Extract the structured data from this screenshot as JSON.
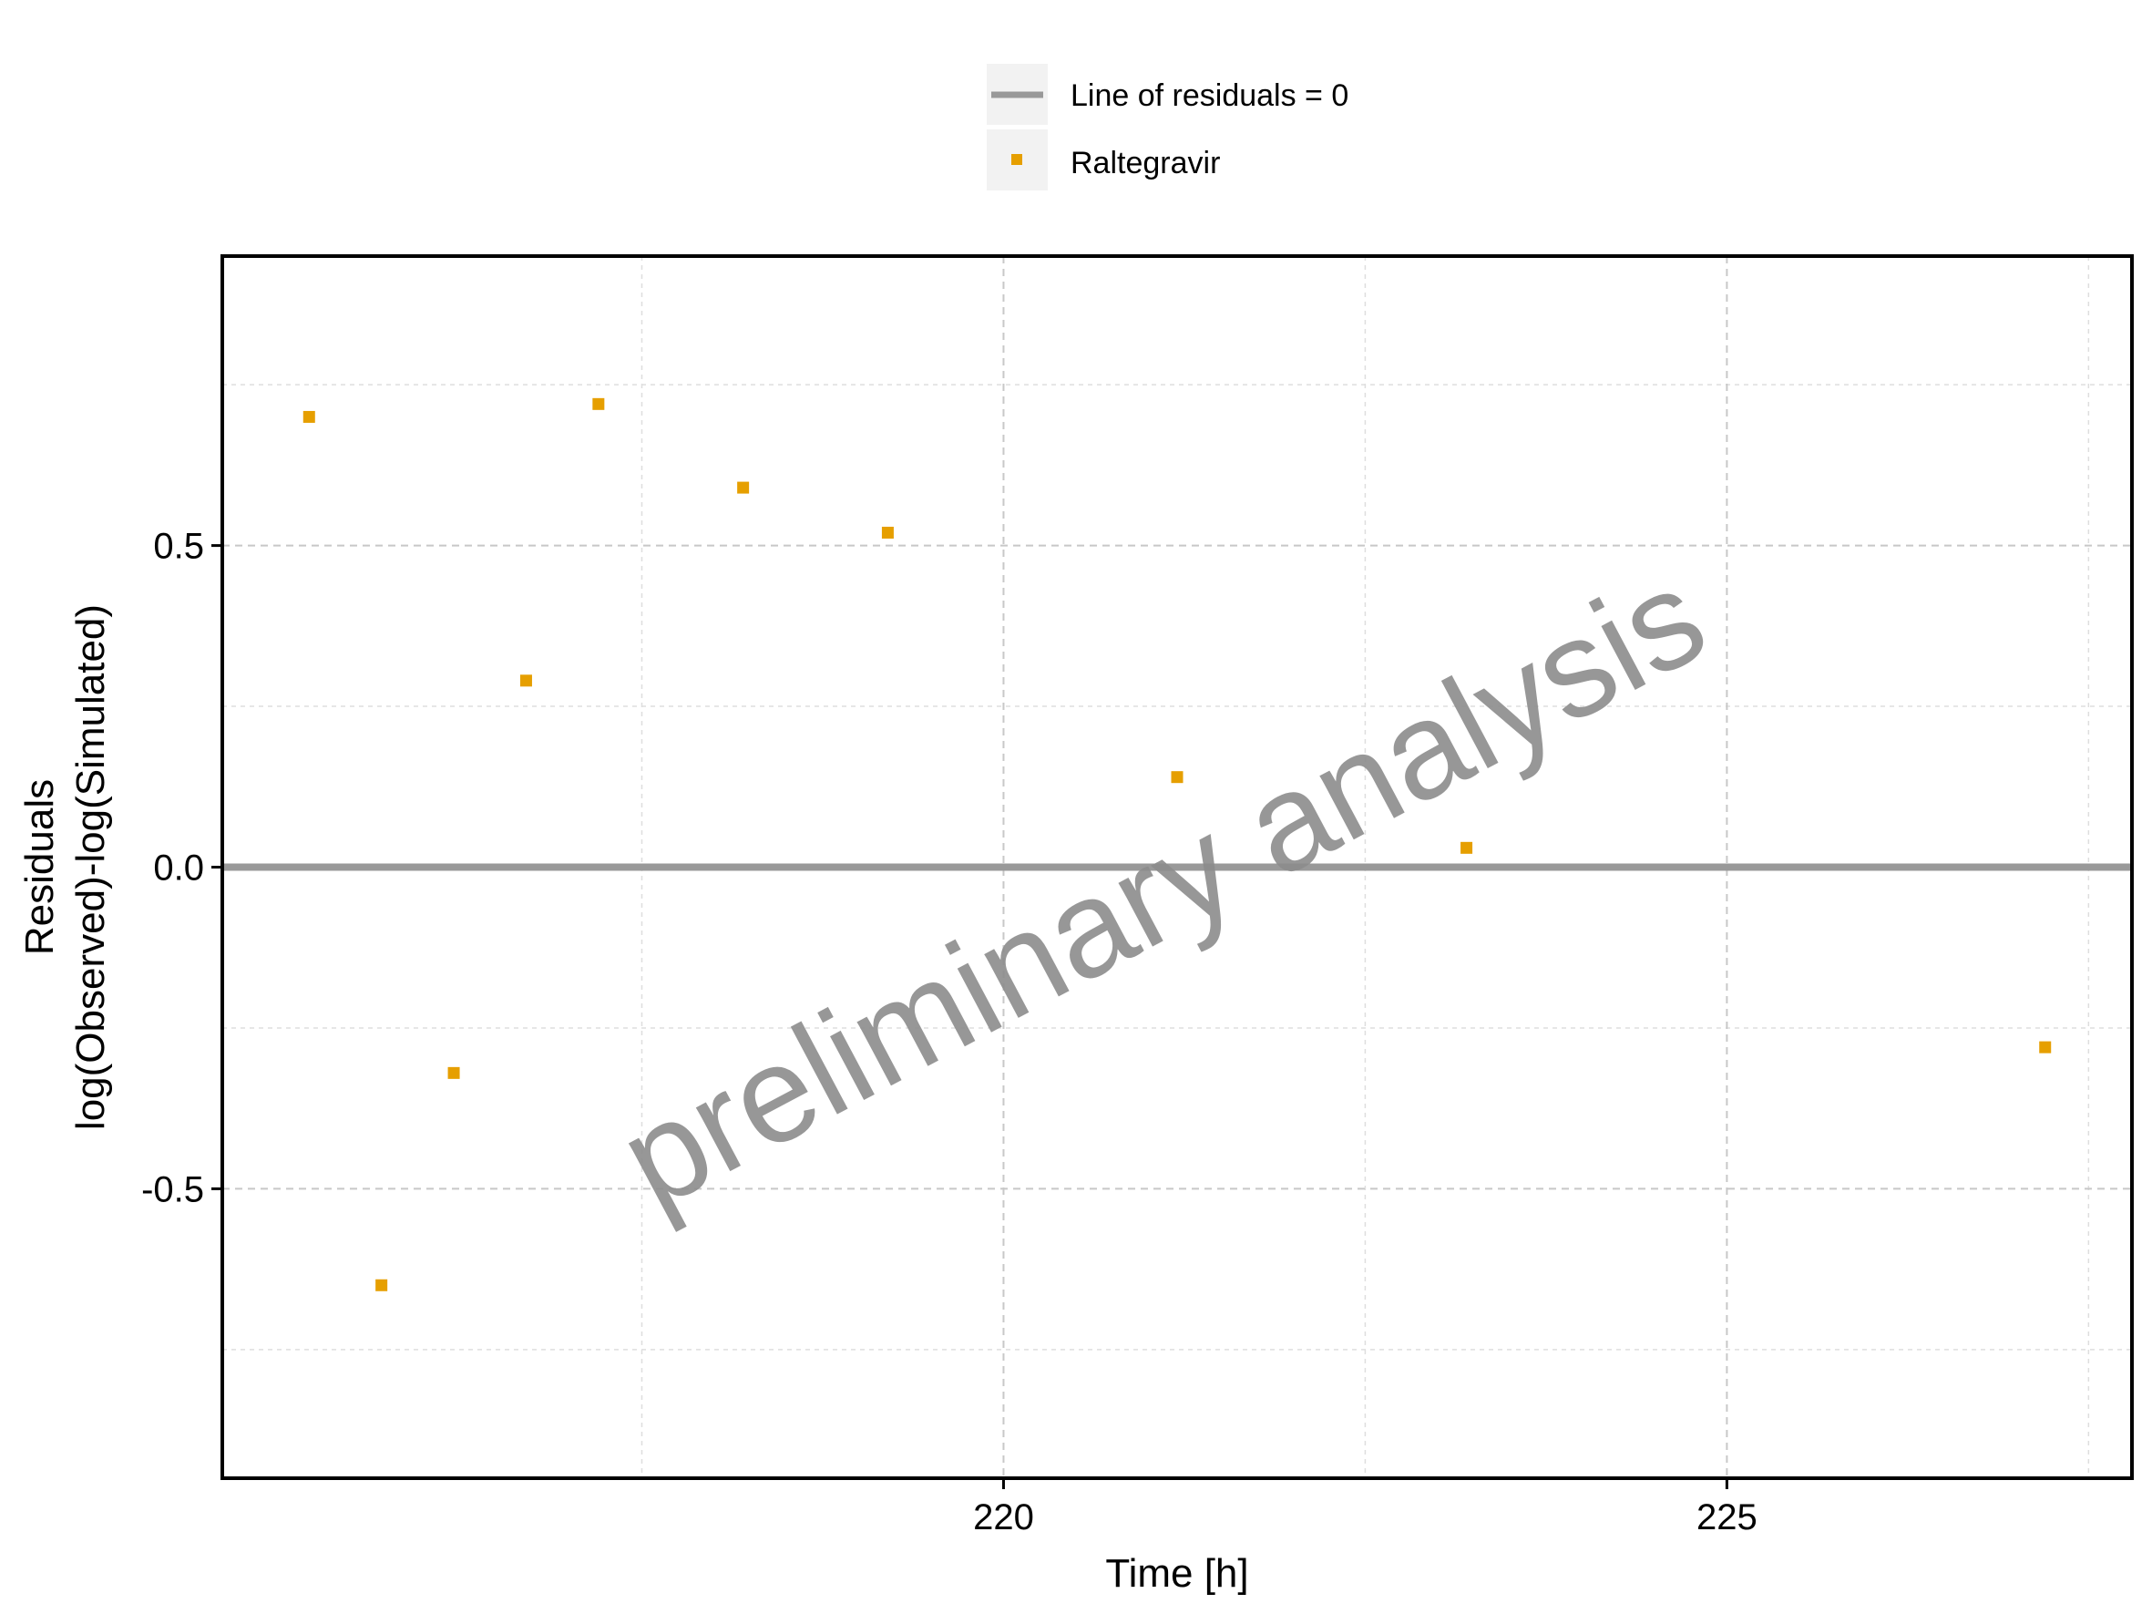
{
  "chart_data": {
    "type": "scatter",
    "xlabel": "Time [h]",
    "ylabel_lines": [
      "Residuals",
      "log(Observed)-log(Simulated)"
    ],
    "xlim": [
      214.6,
      227.8
    ],
    "ylim": [
      -0.95,
      0.95
    ],
    "x_ticks": [
      220,
      225
    ],
    "x_tick_labels": [
      "220",
      "225"
    ],
    "x_minor_ticks": [
      217.5,
      222.5,
      227.5
    ],
    "y_ticks": [
      -0.5,
      0.0,
      0.5
    ],
    "y_tick_labels": [
      "-0.5",
      "0.0",
      "0.5"
    ],
    "y_minor_ticks": [
      -0.75,
      -0.25,
      0.25,
      0.75
    ],
    "grid": true,
    "legend": {
      "placement": "top-center",
      "entries": [
        {
          "label": "Line of residuals = 0",
          "symbol": "line",
          "color": "#999999"
        },
        {
          "label": "Raltegravir",
          "symbol": "square",
          "color": "#E69F00"
        }
      ]
    },
    "reference_line": {
      "y": 0,
      "color": "#999999"
    },
    "series": [
      {
        "name": "Raltegravir",
        "color": "#E69F00",
        "x": [
          215.2,
          215.7,
          216.2,
          216.7,
          217.2,
          218.2,
          219.2,
          221.2,
          223.2,
          227.2
        ],
        "y": [
          0.7,
          -0.65,
          -0.32,
          0.29,
          0.72,
          0.59,
          0.52,
          0.14,
          0.03,
          -0.28
        ]
      }
    ]
  },
  "watermark": "preliminary analysis"
}
